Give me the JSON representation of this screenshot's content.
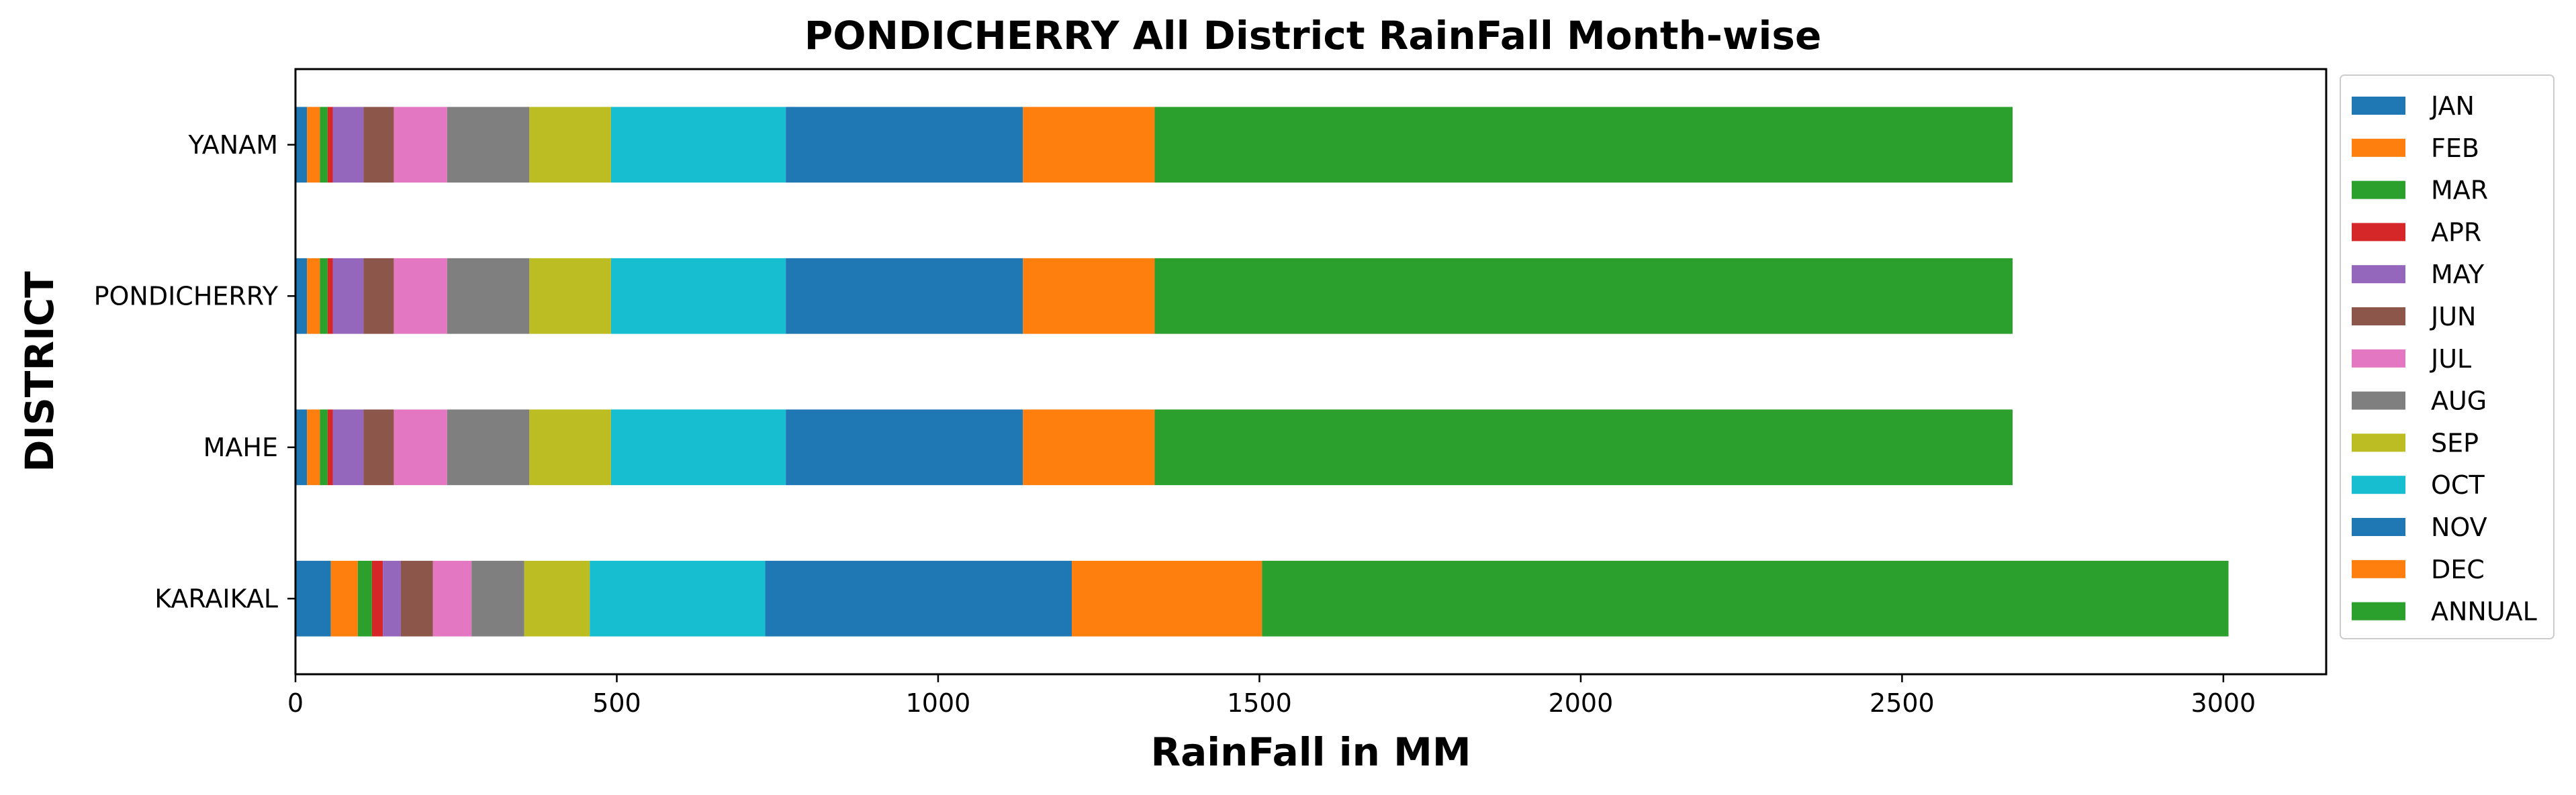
{
  "chart_data": {
    "type": "bar",
    "orientation": "horizontal",
    "stacked": true,
    "title": "PONDICHERRY All District RainFall Month-wise",
    "xlabel": "RainFall in MM",
    "ylabel": "DISTRICT",
    "xlim": [
      0,
      3160
    ],
    "xticks": [
      0,
      500,
      1000,
      1500,
      2000,
      2500,
      3000
    ],
    "xtick_labels": [
      "0",
      "500",
      "1000",
      "1500",
      "2000",
      "2500",
      "3000"
    ],
    "categories": [
      "KARAIKAL",
      "MAHE",
      "PONDICHERRY",
      "YANAM"
    ],
    "grid": false,
    "legend_position": "outside-right",
    "series": [
      {
        "name": "JAN",
        "color": "#1f77b4",
        "values": [
          55,
          18,
          18,
          18
        ]
      },
      {
        "name": "FEB",
        "color": "#ff7f0e",
        "values": [
          42,
          20,
          20,
          20
        ]
      },
      {
        "name": "MAR",
        "color": "#2ca02c",
        "values": [
          22,
          12,
          12,
          12
        ]
      },
      {
        "name": "APR",
        "color": "#d62728",
        "values": [
          17,
          8,
          8,
          8
        ]
      },
      {
        "name": "MAY",
        "color": "#9467bd",
        "values": [
          28,
          48,
          48,
          48
        ]
      },
      {
        "name": "JUN",
        "color": "#8c564b",
        "values": [
          50,
          47,
          47,
          47
        ]
      },
      {
        "name": "JUL",
        "color": "#e377c2",
        "values": [
          60,
          83,
          83,
          83
        ]
      },
      {
        "name": "AUG",
        "color": "#7f7f7f",
        "values": [
          82,
          128,
          128,
          128
        ]
      },
      {
        "name": "SEP",
        "color": "#bcbd22",
        "values": [
          102,
          127,
          127,
          127
        ]
      },
      {
        "name": "OCT",
        "color": "#17becf",
        "values": [
          273,
          272,
          272,
          272
        ]
      },
      {
        "name": "NOV",
        "color": "#1f77b4",
        "values": [
          477,
          369,
          369,
          369
        ]
      },
      {
        "name": "DEC",
        "color": "#ff7f0e",
        "values": [
          296,
          205,
          205,
          205
        ]
      },
      {
        "name": "ANNUAL",
        "color": "#2ca02c",
        "values": [
          1504,
          1335,
          1335,
          1335
        ]
      }
    ]
  }
}
